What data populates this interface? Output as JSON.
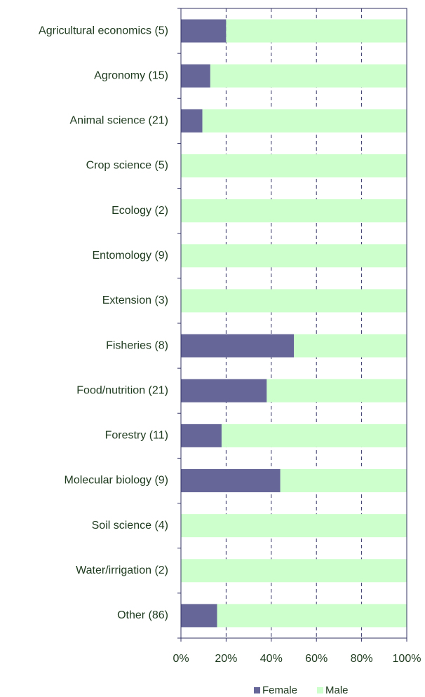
{
  "chart_data": {
    "type": "stacked_barh",
    "categories": [
      "Agricultural economics (5)",
      "Agronomy (15)",
      "Animal science (21)",
      "Crop science (5)",
      "Ecology (2)",
      "Entomology (9)",
      "Extension (3)",
      "Fisheries (8)",
      "Food/nutrition (21)",
      "Forestry (11)",
      "Molecular biology (9)",
      "Soil science (4)",
      "Water/irrigation (2)",
      "Other (86)"
    ],
    "series": [
      {
        "name": "Female",
        "color": "#666699",
        "values": [
          20,
          13,
          9.5,
          0,
          0,
          0,
          0,
          50,
          38,
          18,
          44,
          0,
          0,
          16
        ]
      },
      {
        "name": "Male",
        "color": "#ccffcc",
        "values": [
          80,
          87,
          90.5,
          100,
          100,
          100,
          100,
          50,
          62,
          82,
          56,
          100,
          100,
          84
        ]
      }
    ],
    "xlim": [
      0,
      100
    ],
    "xticks": [
      {
        "value": 0,
        "label": "0%"
      },
      {
        "value": 20,
        "label": "20%"
      },
      {
        "value": 40,
        "label": "40%"
      },
      {
        "value": 60,
        "label": "60%"
      },
      {
        "value": 80,
        "label": "80%"
      },
      {
        "value": 100,
        "label": "100%"
      }
    ],
    "grid": true
  }
}
